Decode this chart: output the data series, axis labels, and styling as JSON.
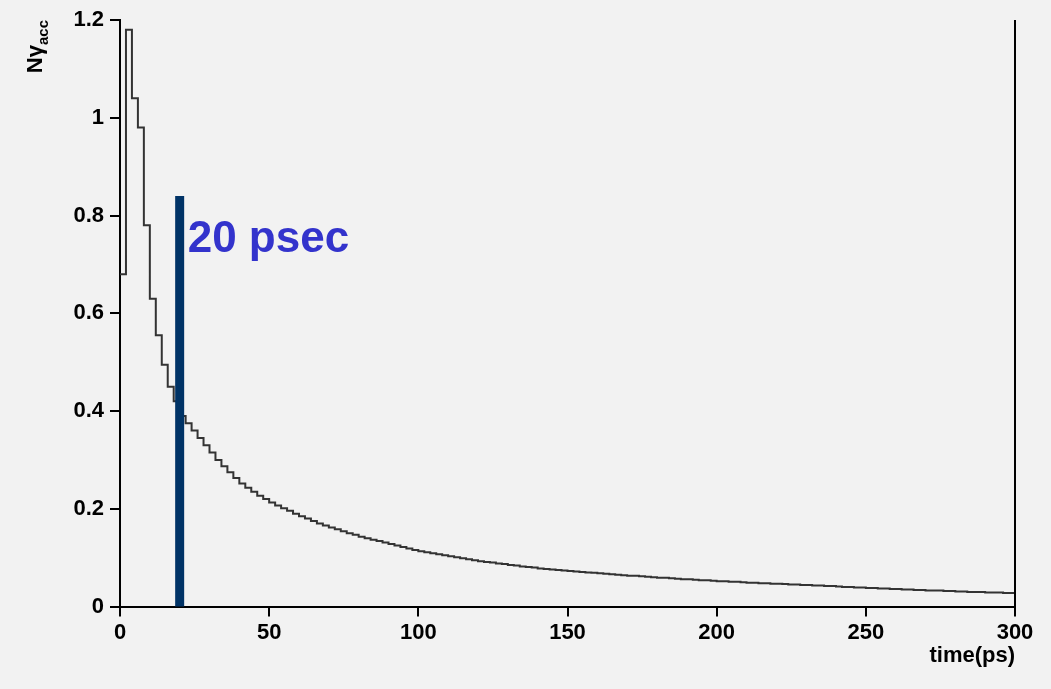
{
  "chart_data": {
    "type": "histogram",
    "xlabel": "time(ps)",
    "ylabel": "Nγ$_{acc}$",
    "bins": [
      0,
      2,
      4,
      6,
      8,
      10,
      12,
      14,
      16,
      18,
      20,
      22,
      24,
      26,
      28,
      30,
      32,
      34,
      36,
      38,
      40,
      42,
      44,
      46,
      48,
      50,
      52,
      54,
      56,
      58,
      60,
      62,
      64,
      66,
      68,
      70,
      72,
      74,
      76,
      78,
      80,
      82,
      84,
      86,
      88,
      90,
      92,
      94,
      96,
      98,
      100,
      102,
      104,
      106,
      108,
      110,
      112,
      114,
      116,
      118,
      120,
      122,
      124,
      126,
      128,
      130,
      132,
      134,
      136,
      138,
      140,
      142,
      144,
      146,
      148,
      150,
      152,
      154,
      156,
      158,
      160,
      162,
      164,
      166,
      168,
      170,
      172,
      174,
      176,
      178,
      180,
      182,
      184,
      186,
      188,
      190,
      192,
      194,
      196,
      198,
      200,
      202,
      204,
      206,
      208,
      210,
      212,
      214,
      216,
      218,
      220,
      222,
      224,
      226,
      228,
      230,
      232,
      234,
      236,
      238,
      240,
      242,
      244,
      246,
      248,
      250,
      252,
      254,
      256,
      258,
      260,
      262,
      264,
      266,
      268,
      270,
      272,
      274,
      276,
      278,
      280,
      282,
      284,
      286,
      288,
      290,
      292,
      294,
      296,
      298,
      300
    ],
    "values": [
      0.68,
      1.18,
      1.04,
      0.98,
      0.78,
      0.63,
      0.555,
      0.495,
      0.45,
      0.42,
      0.39,
      0.375,
      0.36,
      0.345,
      0.33,
      0.315,
      0.3,
      0.287,
      0.275,
      0.263,
      0.252,
      0.243,
      0.235,
      0.227,
      0.22,
      0.213,
      0.207,
      0.201,
      0.196,
      0.19,
      0.185,
      0.18,
      0.175,
      0.17,
      0.166,
      0.162,
      0.158,
      0.154,
      0.15,
      0.147,
      0.143,
      0.14,
      0.137,
      0.134,
      0.131,
      0.128,
      0.125,
      0.122,
      0.119,
      0.116,
      0.113,
      0.111,
      0.109,
      0.107,
      0.105,
      0.103,
      0.101,
      0.099,
      0.097,
      0.095,
      0.093,
      0.091,
      0.09,
      0.088,
      0.087,
      0.085,
      0.084,
      0.082,
      0.081,
      0.08,
      0.078,
      0.077,
      0.076,
      0.075,
      0.074,
      0.073,
      0.072,
      0.071,
      0.07,
      0.069,
      0.068,
      0.067,
      0.066,
      0.065,
      0.064,
      0.063,
      0.063,
      0.062,
      0.061,
      0.06,
      0.059,
      0.059,
      0.058,
      0.057,
      0.056,
      0.056,
      0.055,
      0.054,
      0.054,
      0.053,
      0.052,
      0.052,
      0.051,
      0.051,
      0.05,
      0.049,
      0.049,
      0.048,
      0.048,
      0.047,
      0.047,
      0.046,
      0.045,
      0.045,
      0.044,
      0.044,
      0.043,
      0.043,
      0.042,
      0.042,
      0.041,
      0.04,
      0.04,
      0.039,
      0.039,
      0.038,
      0.038,
      0.037,
      0.037,
      0.036,
      0.036,
      0.035,
      0.035,
      0.034,
      0.034,
      0.033,
      0.033,
      0.033,
      0.032,
      0.032,
      0.031,
      0.031,
      0.03,
      0.03,
      0.03,
      0.029,
      0.029,
      0.029,
      0.028,
      0.028
    ],
    "color": "#333333",
    "xlim": [
      0,
      300
    ],
    "xticks": [
      0,
      50,
      100,
      150,
      200,
      250,
      300
    ],
    "ylim": [
      0,
      1.2
    ],
    "yticks": [
      0,
      0.2,
      0.4,
      0.6,
      0.8,
      1,
      1.2
    ],
    "grid": false,
    "ref_lines": [
      {
        "axis": "x",
        "value": 20,
        "label": "20 psec",
        "color": "#003366"
      }
    ]
  }
}
